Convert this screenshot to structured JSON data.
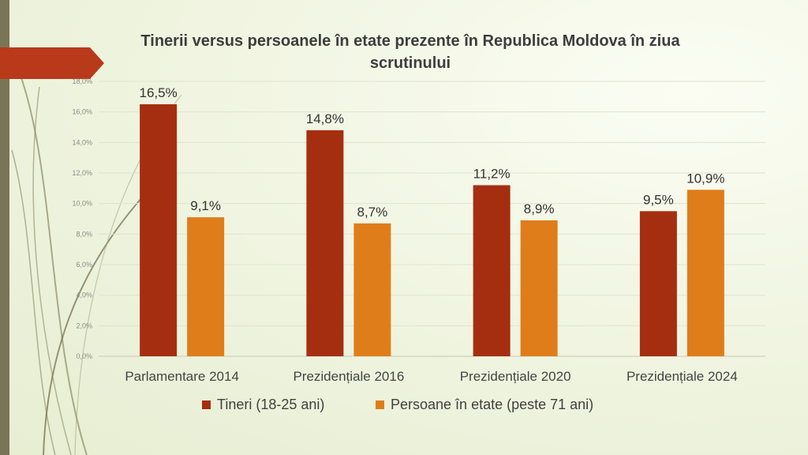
{
  "colors": {
    "series1": "#a52e10",
    "series2": "#df7d1b",
    "accent": "#b83a1a",
    "sidebar": "#7a7458"
  },
  "chart_data": {
    "type": "bar",
    "title": "Tinerii versus persoanele în etate prezente în Republica Moldova în ziua scrutinului",
    "categories": [
      "Parlamentare 2014",
      "Prezidențiale 2016",
      "Prezidențiale 2020",
      "Prezidențiale 2024"
    ],
    "series": [
      {
        "name": "Tineri (18-25 ani)",
        "values": [
          16.5,
          14.8,
          11.2,
          9.5
        ],
        "labels": [
          "16,5%",
          "14,8%",
          "11,2%",
          "9,5%"
        ]
      },
      {
        "name": "Persoane în etate (peste 71 ani)",
        "values": [
          9.1,
          8.7,
          8.9,
          10.9
        ],
        "labels": [
          "9,1%",
          "8,7%",
          "8,9%",
          "10,9%"
        ]
      }
    ],
    "ylim": [
      0,
      18
    ],
    "yticks": [
      "0,0%",
      "2,0%",
      "4,0%",
      "6,0%",
      "8,0%",
      "10,0%",
      "12,0%",
      "14,0%",
      "16,0%",
      "18,0%"
    ],
    "grid": true,
    "legend": "bottom",
    "xlabel": "",
    "ylabel": ""
  }
}
